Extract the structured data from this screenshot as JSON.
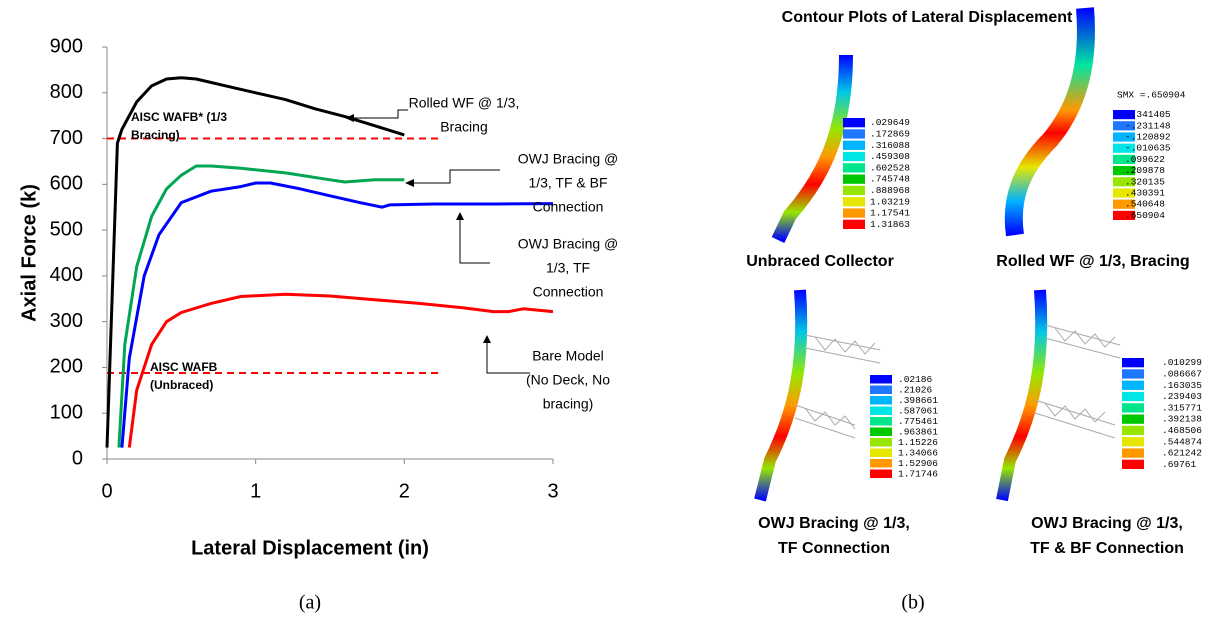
{
  "chart_data": {
    "type": "line",
    "x_label": "Lateral Displacement (in)",
    "y_label": "Axial Force (k)",
    "xlim": [
      0,
      3
    ],
    "xticks": [
      0,
      1,
      2,
      3
    ],
    "ylim": [
      0,
      900
    ],
    "yticks": [
      0,
      100,
      200,
      300,
      400,
      500,
      600,
      700,
      800,
      900
    ],
    "grid": false,
    "series": [
      {
        "color": "#000000",
        "x": [
          0.0,
          0.07,
          0.1,
          0.2,
          0.3,
          0.4,
          0.5,
          0.6,
          0.8,
          1.0,
          1.2,
          1.4,
          1.6,
          1.8,
          2.0
        ],
        "values": [
          25,
          690,
          720,
          780,
          815,
          830,
          833,
          830,
          815,
          800,
          785,
          765,
          748,
          728,
          708
        ]
      },
      {
        "color": "#00a651",
        "x": [
          0.08,
          0.12,
          0.2,
          0.3,
          0.4,
          0.5,
          0.6,
          0.7,
          0.9,
          1.2,
          1.5,
          1.6,
          1.8,
          2.0
        ],
        "values": [
          25,
          250,
          420,
          530,
          590,
          620,
          640,
          640,
          635,
          625,
          610,
          605,
          610,
          610
        ]
      },
      {
        "color": "#0000ff",
        "x": [
          0.1,
          0.15,
          0.25,
          0.35,
          0.5,
          0.7,
          0.9,
          1.0,
          1.1,
          1.3,
          1.5,
          1.7,
          1.85,
          1.9,
          2.2,
          2.6,
          3.0
        ],
        "values": [
          25,
          220,
          400,
          490,
          560,
          585,
          595,
          603,
          603,
          590,
          575,
          560,
          550,
          555,
          557,
          557,
          558
        ]
      },
      {
        "color": "#ff0000",
        "x": [
          0.15,
          0.2,
          0.3,
          0.4,
          0.5,
          0.7,
          0.9,
          1.2,
          1.5,
          1.8,
          2.1,
          2.4,
          2.6,
          2.7,
          2.8,
          3.0
        ],
        "values": [
          25,
          150,
          250,
          300,
          320,
          340,
          355,
          360,
          356,
          348,
          340,
          330,
          322,
          322,
          328,
          322
        ]
      }
    ],
    "reference_lines": [
      {
        "value": 700,
        "x": [
          0,
          2.25
        ],
        "color": "#ff0000"
      },
      {
        "value": 188,
        "x": [
          0,
          2.25
        ],
        "color": "#ff0000"
      }
    ],
    "annotations": [
      {
        "lines": [
          "AISC WAFB* (1/3",
          "Bracing)"
        ]
      },
      {
        "lines": [
          "Rolled WF @ 1/3,",
          "Bracing"
        ]
      },
      {
        "lines": [
          "OWJ Bracing @",
          "1/3, TF & BF",
          "Connection"
        ]
      },
      {
        "lines": [
          "OWJ Bracing @",
          "1/3, TF",
          "Connection"
        ]
      },
      {
        "lines": [
          "Bare Model",
          "(No Deck, No",
          "bracing)"
        ]
      },
      {
        "lines": [
          "AISC WAFB",
          "(Unbraced)"
        ]
      }
    ]
  },
  "figure_b": {
    "title": "Contour Plots of Lateral Displacement",
    "contour_colors": [
      "#0000ff",
      "#1e78ff",
      "#00b4ff",
      "#00e6e6",
      "#00e68c",
      "#00c800",
      "#96e600",
      "#e6e600",
      "#ff9900",
      "#ff0000"
    ],
    "panels": [
      {
        "label": [
          "Unbraced Collector"
        ],
        "legend": [
          ".029649",
          ".172869",
          ".316088",
          ".459308",
          ".602528",
          ".745748",
          ".888968",
          "1.03219",
          "1.17541",
          "1.31863"
        ]
      },
      {
        "label": [
          "Rolled WF @ 1/3, Bracing"
        ],
        "legend_title": "SMX =.650904",
        "legend": [
          "-.341405",
          "-.231148",
          "-.120892",
          "-.010635",
          ".099622",
          ".209878",
          ".320135",
          ".430391",
          ".540648",
          ".650904"
        ]
      },
      {
        "label": [
          "OWJ Bracing @ 1/3,",
          "TF Connection"
        ],
        "legend": [
          ".02186",
          ".21026",
          ".398661",
          ".587061",
          ".775461",
          ".963861",
          "1.15226",
          "1.34066",
          "1.52906",
          "1.71746"
        ]
      },
      {
        "label": [
          "OWJ Bracing @ 1/3,",
          "TF & BF Connection"
        ],
        "legend": [
          ".010299",
          ".086667",
          ".163035",
          ".239403",
          ".315771",
          ".392138",
          ".468506",
          ".544874",
          ".621242",
          ".69761"
        ]
      }
    ]
  },
  "captions": {
    "a": "(a)",
    "b": "(b)"
  }
}
